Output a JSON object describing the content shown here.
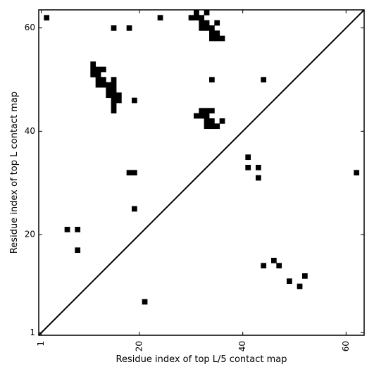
{
  "chart_data": {
    "type": "heatmap",
    "title": "",
    "xlabel": "Residue index of top L/5 contact map",
    "ylabel": "Residue index of top L contact map",
    "xlim": [
      0.5,
      63.5
    ],
    "ylim": [
      0.5,
      63.5
    ],
    "x_ticks": [
      1,
      20,
      40,
      60
    ],
    "y_ticks": [
      1,
      20,
      40,
      60
    ],
    "grid": false,
    "diagonal": true,
    "colors": {
      "cell": "#000000",
      "diagonal": "#000000",
      "background": "#ffffff"
    },
    "upper_cells": [
      [
        2,
        62
      ],
      [
        15,
        60
      ],
      [
        18,
        60
      ],
      [
        24,
        62
      ],
      [
        30,
        62
      ],
      [
        31,
        62
      ],
      [
        31,
        63
      ],
      [
        32,
        62
      ],
      [
        32,
        61
      ],
      [
        32,
        60
      ],
      [
        33,
        63
      ],
      [
        33,
        61
      ],
      [
        33,
        60
      ],
      [
        34,
        60
      ],
      [
        34,
        59
      ],
      [
        34,
        58
      ],
      [
        35,
        61
      ],
      [
        35,
        59
      ],
      [
        35,
        58
      ],
      [
        36,
        58
      ],
      [
        11,
        53
      ],
      [
        11,
        52
      ],
      [
        11,
        51
      ],
      [
        12,
        52
      ],
      [
        12,
        51
      ],
      [
        12,
        50
      ],
      [
        12,
        49
      ],
      [
        13,
        52
      ],
      [
        13,
        50
      ],
      [
        13,
        49
      ],
      [
        14,
        49
      ],
      [
        14,
        48
      ],
      [
        14,
        47
      ],
      [
        15,
        50
      ],
      [
        15,
        49
      ],
      [
        15,
        48
      ],
      [
        15,
        47
      ],
      [
        15,
        46
      ],
      [
        15,
        45
      ],
      [
        15,
        44
      ],
      [
        16,
        47
      ],
      [
        16,
        46
      ],
      [
        19,
        46
      ],
      [
        34,
        50
      ],
      [
        44,
        50
      ],
      [
        31,
        43
      ],
      [
        32,
        44
      ],
      [
        32,
        43
      ],
      [
        33,
        44
      ],
      [
        33,
        43
      ],
      [
        33,
        42
      ],
      [
        33,
        41
      ],
      [
        34,
        44
      ],
      [
        34,
        42
      ],
      [
        34,
        41
      ],
      [
        35,
        41
      ],
      [
        36,
        42
      ],
      [
        18,
        32
      ],
      [
        19,
        32
      ],
      [
        19,
        25
      ]
    ],
    "lower_cells": [
      [
        41,
        35
      ],
      [
        41,
        33
      ],
      [
        43,
        33
      ],
      [
        43,
        31
      ],
      [
        62,
        32
      ],
      [
        6,
        21
      ],
      [
        8,
        21
      ],
      [
        8,
        17
      ],
      [
        44,
        14
      ],
      [
        46,
        15
      ],
      [
        47,
        14
      ],
      [
        49,
        11
      ],
      [
        51,
        10
      ],
      [
        52,
        12
      ],
      [
        21,
        7
      ]
    ]
  }
}
